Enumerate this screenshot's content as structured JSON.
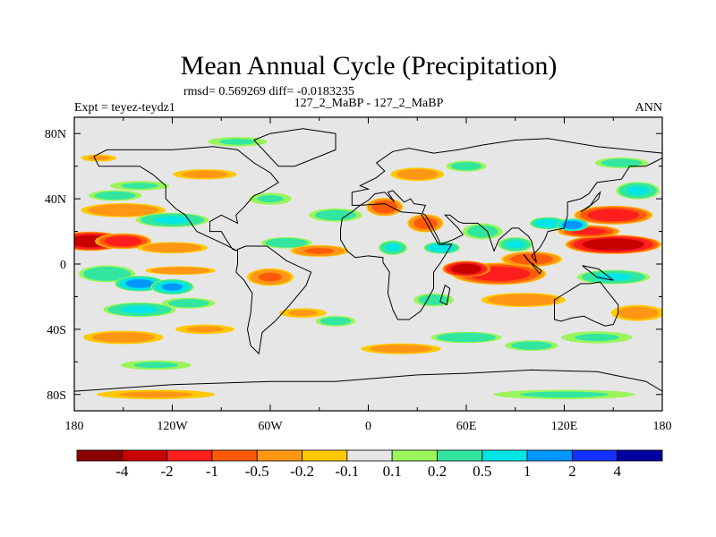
{
  "chart_data": {
    "type": "heatmap",
    "title": "Mean Annual Cycle (Precipitation)",
    "stats": "rmsd= 0.569269 diff= -0.0183235",
    "left_label": "Expt = teyez-teydz1",
    "center_label": "127_2_MaBP - 127_2_MaBP",
    "right_label": "ANN",
    "x_ticks": [
      "180",
      "120W",
      "60W",
      "0",
      "60E",
      "120E",
      "180"
    ],
    "y_ticks": [
      "80N",
      "40N",
      "0",
      "40S",
      "80S"
    ],
    "xlim": [
      -180,
      180
    ],
    "ylim": [
      -90,
      90
    ],
    "colorbar_labels": [
      "-4",
      "-2",
      "-1",
      "-0.5",
      "-0.2",
      "-0.1",
      "0.1",
      "0.2",
      "0.5",
      "1",
      "2",
      "4"
    ],
    "colorbar_colors": [
      "#8b0000",
      "#c80000",
      "#ff1e1e",
      "#ff5a0a",
      "#ff9614",
      "#ffc800",
      "#e6e6e6",
      "#9bf55a",
      "#32e6a0",
      "#00e6e6",
      "#0096ff",
      "#1432ff",
      "#0000a0"
    ],
    "anomaly_blobs": [
      {
        "lon": -170,
        "lat": 14,
        "rlon": 22,
        "rlat": 6,
        "v": -3
      },
      {
        "lon": -150,
        "lat": 14,
        "rlon": 18,
        "rlat": 5,
        "v": -1.5
      },
      {
        "lon": -120,
        "lat": 10,
        "rlon": 25,
        "rlat": 4,
        "v": -0.4
      },
      {
        "lon": -150,
        "lat": 33,
        "rlon": 30,
        "rlat": 5,
        "v": -0.4
      },
      {
        "lon": -100,
        "lat": 55,
        "rlon": 25,
        "rlat": 4,
        "v": -0.25
      },
      {
        "lon": -165,
        "lat": 65,
        "rlon": 15,
        "rlat": 3,
        "v": -0.2
      },
      {
        "lon": -155,
        "lat": 42,
        "rlon": 20,
        "rlat": 4,
        "v": 0.3
      },
      {
        "lon": -120,
        "lat": 27,
        "rlon": 25,
        "rlat": 5,
        "v": 0.5
      },
      {
        "lon": -140,
        "lat": 48,
        "rlon": 25,
        "rlat": 4,
        "v": 0.2
      },
      {
        "lon": -160,
        "lat": -6,
        "rlon": 20,
        "rlat": 6,
        "v": 0.4
      },
      {
        "lon": -140,
        "lat": -12,
        "rlon": 16,
        "rlat": 5,
        "v": 1.2
      },
      {
        "lon": -120,
        "lat": -14,
        "rlon": 14,
        "rlat": 5,
        "v": 1.0
      },
      {
        "lon": -115,
        "lat": -4,
        "rlon": 25,
        "rlat": 3,
        "v": -0.4
      },
      {
        "lon": -140,
        "lat": -28,
        "rlon": 25,
        "rlat": 5,
        "v": 0.5
      },
      {
        "lon": -110,
        "lat": -24,
        "rlon": 20,
        "rlat": 4,
        "v": 0.3
      },
      {
        "lon": -150,
        "lat": -45,
        "rlon": 30,
        "rlat": 5,
        "v": -0.3
      },
      {
        "lon": -100,
        "lat": -40,
        "rlon": 25,
        "rlat": 4,
        "v": -0.2
      },
      {
        "lon": -130,
        "lat": -62,
        "rlon": 30,
        "rlat": 4,
        "v": 0.2
      },
      {
        "lon": -130,
        "lat": -80,
        "rlon": 50,
        "rlat": 4,
        "v": -0.2
      },
      {
        "lon": -60,
        "lat": -8,
        "rlon": 16,
        "rlat": 6,
        "v": -0.5
      },
      {
        "lon": -50,
        "lat": 13,
        "rlon": 18,
        "rlat": 4,
        "v": 0.4
      },
      {
        "lon": -30,
        "lat": 8,
        "rlon": 20,
        "rlat": 4,
        "v": -0.5
      },
      {
        "lon": -20,
        "lat": 30,
        "rlon": 20,
        "rlat": 5,
        "v": 0.3
      },
      {
        "lon": -40,
        "lat": -30,
        "rlon": 20,
        "rlat": 4,
        "v": -0.2
      },
      {
        "lon": -20,
        "lat": -35,
        "rlon": 15,
        "rlat": 4,
        "v": 0.3
      },
      {
        "lon": -60,
        "lat": 40,
        "rlon": 18,
        "rlat": 5,
        "v": 0.2
      },
      {
        "lon": 10,
        "lat": 35,
        "rlon": 12,
        "rlat": 6,
        "v": -0.8
      },
      {
        "lon": 15,
        "lat": 10,
        "rlon": 10,
        "rlat": 5,
        "v": 0.5
      },
      {
        "lon": 35,
        "lat": 25,
        "rlon": 12,
        "rlat": 6,
        "v": -0.7
      },
      {
        "lon": 45,
        "lat": 10,
        "rlon": 12,
        "rlat": 4,
        "v": 0.8
      },
      {
        "lon": 30,
        "lat": 55,
        "rlon": 20,
        "rlat": 5,
        "v": -0.3
      },
      {
        "lon": 60,
        "lat": 60,
        "rlon": 15,
        "rlat": 4,
        "v": 0.3
      },
      {
        "lon": 80,
        "lat": -6,
        "rlon": 30,
        "rlat": 7,
        "v": -1.5
      },
      {
        "lon": 60,
        "lat": -3,
        "rlon": 15,
        "rlat": 5,
        "v": -3
      },
      {
        "lon": 100,
        "lat": 3,
        "rlon": 20,
        "rlat": 5,
        "v": -0.8
      },
      {
        "lon": 95,
        "lat": -22,
        "rlon": 30,
        "rlat": 5,
        "v": -0.4
      },
      {
        "lon": 70,
        "lat": 20,
        "rlon": 15,
        "rlat": 6,
        "v": 0.3
      },
      {
        "lon": 90,
        "lat": 12,
        "rlon": 12,
        "rlat": 5,
        "v": 0.5
      },
      {
        "lon": 60,
        "lat": -45,
        "rlon": 25,
        "rlat": 4,
        "v": 0.4
      },
      {
        "lon": 100,
        "lat": -50,
        "rlon": 20,
        "rlat": 4,
        "v": 0.3
      },
      {
        "lon": 40,
        "lat": -22,
        "rlon": 15,
        "rlat": 5,
        "v": 0.3
      },
      {
        "lon": 150,
        "lat": 12,
        "rlon": 30,
        "rlat": 6,
        "v": -3
      },
      {
        "lon": 135,
        "lat": 20,
        "rlon": 20,
        "rlat": 4,
        "v": -1.2
      },
      {
        "lon": 150,
        "lat": 30,
        "rlon": 25,
        "rlat": 6,
        "v": -1.5
      },
      {
        "lon": 110,
        "lat": 25,
        "rlon": 12,
        "rlat": 4,
        "v": 0.8
      },
      {
        "lon": 125,
        "lat": 24,
        "rlon": 10,
        "rlat": 4,
        "v": 1.5
      },
      {
        "lon": 165,
        "lat": 45,
        "rlon": 15,
        "rlat": 6,
        "v": 0.5
      },
      {
        "lon": 155,
        "lat": 62,
        "rlon": 20,
        "rlat": 4,
        "v": 0.3
      },
      {
        "lon": 150,
        "lat": -8,
        "rlon": 25,
        "rlat": 5,
        "v": 0.5
      },
      {
        "lon": 165,
        "lat": -30,
        "rlon": 20,
        "rlat": 6,
        "v": -0.3
      },
      {
        "lon": 140,
        "lat": -45,
        "rlon": 30,
        "rlat": 5,
        "v": 0.2
      },
      {
        "lon": 20,
        "lat": -52,
        "rlon": 30,
        "rlat": 4,
        "v": -0.3
      },
      {
        "lon": 120,
        "lat": -80,
        "rlon": 60,
        "rlat": 4,
        "v": 0.2
      },
      {
        "lon": -80,
        "lat": 75,
        "rlon": 25,
        "rlat": 4,
        "v": 0.2
      }
    ],
    "continent_outlines": [
      [
        [
          -168,
          66
        ],
        [
          -160,
          70
        ],
        [
          -140,
          70
        ],
        [
          -120,
          70
        ],
        [
          -95,
          72
        ],
        [
          -80,
          70
        ],
        [
          -70,
          62
        ],
        [
          -60,
          56
        ],
        [
          -55,
          50
        ],
        [
          -65,
          44
        ],
        [
          -70,
          42
        ],
        [
          -76,
          35
        ],
        [
          -81,
          30
        ],
        [
          -80,
          25
        ],
        [
          -90,
          30
        ],
        [
          -97,
          26
        ],
        [
          -97,
          20
        ],
        [
          -90,
          20
        ],
        [
          -87,
          15
        ],
        [
          -83,
          9
        ],
        [
          -80,
          8
        ],
        [
          -90,
          13
        ],
        [
          -105,
          20
        ],
        [
          -112,
          30
        ],
        [
          -118,
          34
        ],
        [
          -124,
          40
        ],
        [
          -124,
          48
        ],
        [
          -132,
          55
        ],
        [
          -140,
          60
        ],
        [
          -150,
          60
        ],
        [
          -165,
          60
        ],
        [
          -168,
          66
        ]
      ],
      [
        [
          -80,
          9
        ],
        [
          -75,
          11
        ],
        [
          -62,
          11
        ],
        [
          -50,
          2
        ],
        [
          -35,
          -5
        ],
        [
          -38,
          -13
        ],
        [
          -48,
          -25
        ],
        [
          -57,
          -35
        ],
        [
          -65,
          -42
        ],
        [
          -67,
          -55
        ],
        [
          -72,
          -50
        ],
        [
          -74,
          -40
        ],
        [
          -72,
          -30
        ],
        [
          -71,
          -18
        ],
        [
          -76,
          -10
        ],
        [
          -81,
          -5
        ],
        [
          -80,
          0
        ],
        [
          -80,
          9
        ]
      ],
      [
        [
          -10,
          36
        ],
        [
          -10,
          44
        ],
        [
          0,
          46
        ],
        [
          -5,
          48
        ],
        [
          5,
          53
        ],
        [
          10,
          57
        ],
        [
          5,
          62
        ],
        [
          15,
          69
        ],
        [
          25,
          71
        ],
        [
          40,
          68
        ],
        [
          55,
          70
        ],
        [
          70,
          73
        ],
        [
          90,
          76
        ],
        [
          110,
          77
        ],
        [
          140,
          72
        ],
        [
          160,
          70
        ],
        [
          180,
          68
        ],
        [
          180,
          65
        ],
        [
          170,
          60
        ],
        [
          160,
          60
        ],
        [
          155,
          52
        ],
        [
          140,
          50
        ],
        [
          135,
          43
        ],
        [
          130,
          40
        ],
        [
          122,
          38
        ],
        [
          122,
          30
        ],
        [
          120,
          22
        ],
        [
          110,
          20
        ],
        [
          108,
          15
        ],
        [
          105,
          10
        ],
        [
          100,
          5
        ],
        [
          103,
          1
        ],
        [
          100,
          14
        ],
        [
          98,
          17
        ],
        [
          92,
          22
        ],
        [
          88,
          22
        ],
        [
          80,
          15
        ],
        [
          77,
          8
        ],
        [
          73,
          20
        ],
        [
          67,
          25
        ],
        [
          58,
          25
        ],
        [
          55,
          26
        ],
        [
          50,
          30
        ],
        [
          47,
          30
        ],
        [
          55,
          22
        ],
        [
          58,
          18
        ],
        [
          52,
          15
        ],
        [
          44,
          12
        ],
        [
          43,
          15
        ],
        [
          38,
          25
        ],
        [
          35,
          30
        ],
        [
          33,
          31
        ],
        [
          35,
          36
        ],
        [
          28,
          37
        ],
        [
          26,
          40
        ],
        [
          22,
          38
        ],
        [
          20,
          40
        ],
        [
          15,
          45
        ],
        [
          12,
          44
        ],
        [
          16,
          38
        ],
        [
          10,
          44
        ],
        [
          4,
          43
        ],
        [
          0,
          39
        ],
        [
          -5,
          36
        ],
        [
          -10,
          36
        ]
      ],
      [
        [
          -17,
          21
        ],
        [
          -16,
          28
        ],
        [
          -10,
          32
        ],
        [
          -5,
          36
        ],
        [
          10,
          37
        ],
        [
          20,
          32
        ],
        [
          32,
          31
        ],
        [
          34,
          28
        ],
        [
          43,
          12
        ],
        [
          51,
          12
        ],
        [
          45,
          2
        ],
        [
          40,
          -5
        ],
        [
          40,
          -15
        ],
        [
          35,
          -24
        ],
        [
          32,
          -29
        ],
        [
          25,
          -34
        ],
        [
          18,
          -34
        ],
        [
          15,
          -28
        ],
        [
          12,
          -18
        ],
        [
          13,
          -5
        ],
        [
          9,
          1
        ],
        [
          9,
          4
        ],
        [
          0,
          5
        ],
        [
          -8,
          4
        ],
        [
          -13,
          8
        ],
        [
          -17,
          15
        ],
        [
          -17,
          21
        ]
      ],
      [
        [
          114,
          -22
        ],
        [
          114,
          -34
        ],
        [
          118,
          -35
        ],
        [
          125,
          -33
        ],
        [
          132,
          -32
        ],
        [
          138,
          -35
        ],
        [
          145,
          -38
        ],
        [
          150,
          -37
        ],
        [
          153,
          -30
        ],
        [
          153,
          -25
        ],
        [
          145,
          -15
        ],
        [
          142,
          -11
        ],
        [
          136,
          -12
        ],
        [
          130,
          -12
        ],
        [
          122,
          -17
        ],
        [
          114,
          -22
        ]
      ],
      [
        [
          -55,
          60
        ],
        [
          -45,
          60
        ],
        [
          -20,
          70
        ],
        [
          -20,
          80
        ],
        [
          -40,
          83
        ],
        [
          -60,
          80
        ],
        [
          -70,
          76
        ],
        [
          -55,
          60
        ]
      ],
      [
        [
          -180,
          -78
        ],
        [
          -120,
          -74
        ],
        [
          -60,
          -72
        ],
        [
          -20,
          -72
        ],
        [
          30,
          -68
        ],
        [
          60,
          -67
        ],
        [
          100,
          -65
        ],
        [
          140,
          -66
        ],
        [
          170,
          -72
        ],
        [
          180,
          -78
        ],
        [
          180,
          -90
        ],
        [
          -180,
          -90
        ],
        [
          -180,
          -78
        ]
      ],
      [
        [
          95,
          6
        ],
        [
          105,
          -6
        ],
        [
          106,
          -4
        ],
        [
          98,
          2
        ],
        [
          95,
          6
        ]
      ],
      [
        [
          130,
          32
        ],
        [
          135,
          35
        ],
        [
          141,
          40
        ],
        [
          142,
          44
        ],
        [
          140,
          42
        ],
        [
          136,
          36
        ],
        [
          130,
          32
        ]
      ],
      [
        [
          131,
          -1
        ],
        [
          141,
          -3
        ],
        [
          150,
          -10
        ],
        [
          140,
          -8
        ],
        [
          131,
          -1
        ]
      ],
      [
        [
          47,
          -13
        ],
        [
          50,
          -15
        ],
        [
          48,
          -25
        ],
        [
          44,
          -23
        ],
        [
          47,
          -13
        ]
      ]
    ]
  }
}
